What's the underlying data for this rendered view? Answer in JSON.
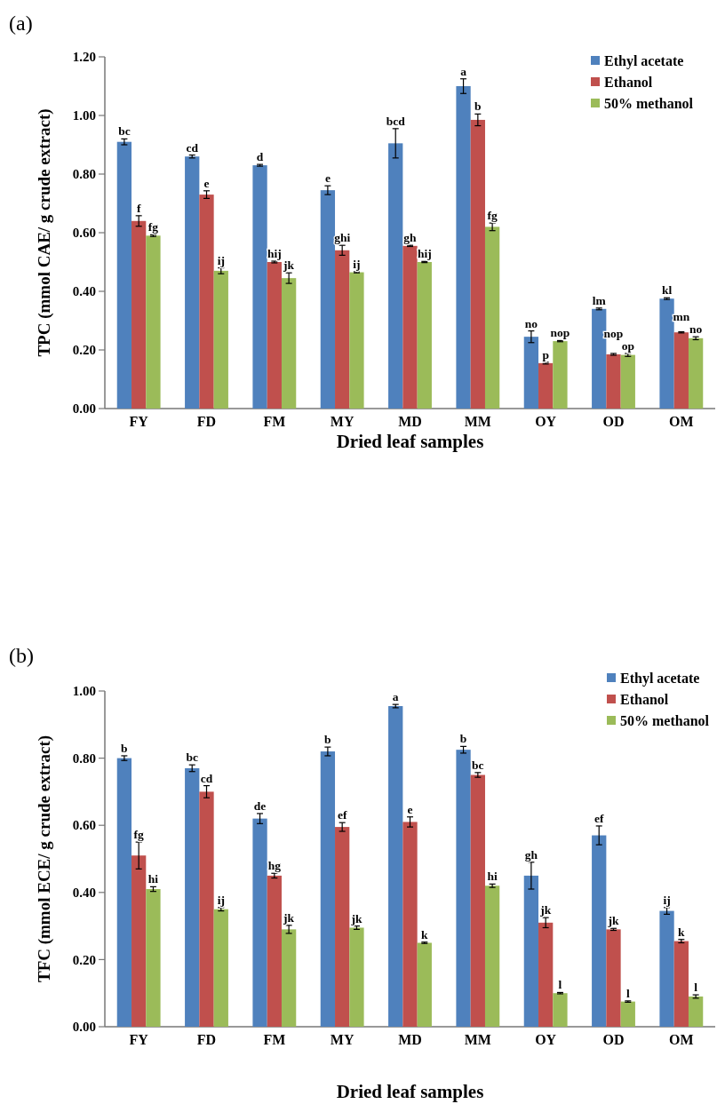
{
  "chart_data": [
    {
      "type": "bar",
      "title": "(a)",
      "xlabel": "Dried leaf samples",
      "ylabel": "TPC (mmol CAE/ g crude extract)",
      "categories": [
        "FY",
        "FD",
        "FM",
        "MY",
        "MD",
        "MM",
        "OY",
        "OD",
        "OM"
      ],
      "series": [
        {
          "name": "Ethyl acetate",
          "color": "#4f81bd",
          "values": [
            0.91,
            0.86,
            0.83,
            0.745,
            0.905,
            1.1,
            0.245,
            0.34,
            0.375
          ],
          "errors": [
            0.01,
            0.005,
            0.003,
            0.015,
            0.05,
            0.025,
            0.02,
            0.003,
            0.003
          ],
          "value_labels": [
            "bc",
            "cd",
            "d",
            "e",
            "bcd",
            "a",
            "no",
            "lm",
            "kl"
          ]
        },
        {
          "name": "Ethanol",
          "color": "#c0504d",
          "values": [
            0.64,
            0.73,
            0.5,
            0.54,
            0.555,
            0.985,
            0.155,
            0.185,
            0.26
          ],
          "errors": [
            0.018,
            0.013,
            0.003,
            0.017,
            0.002,
            0.02,
            0.003,
            0.003,
            0.002
          ],
          "value_labels": [
            "f",
            "e",
            "hij",
            "ghi",
            "gh",
            "b",
            "p",
            "nop",
            "mn"
          ]
        },
        {
          "name": "50% methanol",
          "color": "#9bbb59",
          "values": [
            0.59,
            0.47,
            0.445,
            0.465,
            0.5,
            0.62,
            0.23,
            0.183,
            0.24
          ],
          "errors": [
            0.003,
            0.01,
            0.018,
            0.002,
            0.002,
            0.013,
            0.002,
            0.005,
            0.005
          ],
          "value_labels": [
            "fg",
            "ij",
            "jk",
            "ij",
            "hij",
            "fg",
            "nop",
            "op",
            "no"
          ]
        }
      ],
      "ylim": [
        0,
        1.2
      ],
      "yticks": [
        {
          "value": 0,
          "label": "0.00"
        },
        {
          "value": 0.2,
          "label": "0.20"
        },
        {
          "value": 0.4,
          "label": "0.40"
        },
        {
          "value": 0.6,
          "label": "0.60"
        },
        {
          "value": 0.8,
          "label": "0.80"
        },
        {
          "value": 1.0,
          "label": "1.00"
        },
        {
          "value": 1.2,
          "label": "1.20"
        }
      ],
      "legend": "top right"
    },
    {
      "type": "bar",
      "title": "(b)",
      "xlabel": "Dried leaf samples",
      "ylabel": "TFC (mmol ECE/ g crude extract)",
      "categories": [
        "FY",
        "FD",
        "FM",
        "MY",
        "MD",
        "MM",
        "OY",
        "OD",
        "OM"
      ],
      "series": [
        {
          "name": "Ethyl acetate",
          "color": "#4f81bd",
          "values": [
            0.8,
            0.77,
            0.62,
            0.82,
            0.955,
            0.825,
            0.45,
            0.57,
            0.345
          ],
          "errors": [
            0.007,
            0.01,
            0.015,
            0.013,
            0.005,
            0.01,
            0.04,
            0.028,
            0.01
          ],
          "value_labels": [
            "b",
            "bc",
            "de",
            "b",
            "a",
            "b",
            "gh",
            "ef",
            "ij"
          ]
        },
        {
          "name": "Ethanol",
          "color": "#c0504d",
          "values": [
            0.51,
            0.7,
            0.45,
            0.595,
            0.61,
            0.75,
            0.31,
            0.29,
            0.255
          ],
          "errors": [
            0.04,
            0.018,
            0.007,
            0.013,
            0.015,
            0.007,
            0.015,
            0.003,
            0.005
          ],
          "value_labels": [
            "fg",
            "cd",
            "hg",
            "ef",
            "e",
            "bc",
            "jk",
            "jk",
            "k"
          ]
        },
        {
          "name": "50% methanol",
          "color": "#9bbb59",
          "values": [
            0.41,
            0.35,
            0.29,
            0.295,
            0.25,
            0.42,
            0.1,
            0.075,
            0.09
          ],
          "errors": [
            0.007,
            0.005,
            0.012,
            0.005,
            0.002,
            0.005,
            0.002,
            0.002,
            0.005
          ],
          "value_labels": [
            "hi",
            "ij",
            "jk",
            "jk",
            "k",
            "hi",
            "l",
            "l",
            "l"
          ]
        }
      ],
      "ylim": [
        0,
        1.0
      ],
      "yticks": [
        {
          "value": 0,
          "label": "0.00"
        },
        {
          "value": 0.2,
          "label": "0.20"
        },
        {
          "value": 0.4,
          "label": "0.40"
        },
        {
          "value": 0.6,
          "label": "0.60"
        },
        {
          "value": 0.8,
          "label": "0.80"
        },
        {
          "value": 1.0,
          "label": "1.00"
        }
      ],
      "legend": "top right"
    }
  ]
}
